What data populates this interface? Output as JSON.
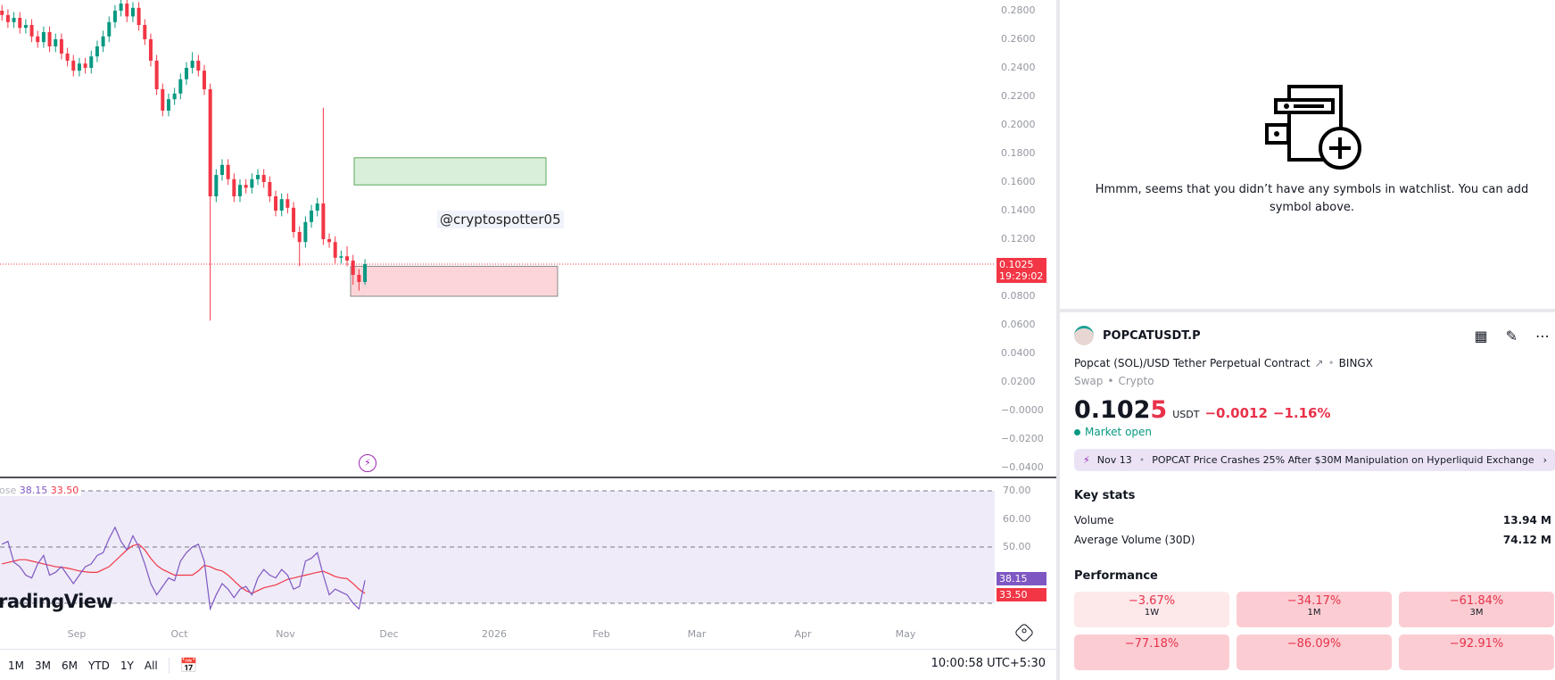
{
  "chart_data": {
    "type": "candlestick",
    "price_axis": {
      "ticks": [
        "0.2800",
        "0.2600",
        "0.2400",
        "0.2200",
        "0.2000",
        "0.1800",
        "0.1600",
        "0.1400",
        "0.1200",
        "0.0800",
        "0.0600",
        "0.0400",
        "0.0200",
        "−0.0000",
        "−0.0200",
        "−0.0400"
      ],
      "range": [
        -0.044,
        0.286
      ]
    },
    "time_axis": [
      "Sep",
      "Oct",
      "Nov",
      "Dec",
      "2026",
      "Feb",
      "Mar",
      "Apr",
      "May"
    ],
    "candles": [
      [
        0.28,
        0.284,
        0.273,
        0.277
      ],
      [
        0.277,
        0.281,
        0.268,
        0.272
      ],
      [
        0.272,
        0.279,
        0.268,
        0.275
      ],
      [
        0.275,
        0.279,
        0.264,
        0.268
      ],
      [
        0.268,
        0.274,
        0.264,
        0.27
      ],
      [
        0.27,
        0.274,
        0.258,
        0.262
      ],
      [
        0.262,
        0.266,
        0.254,
        0.258
      ],
      [
        0.258,
        0.269,
        0.254,
        0.265
      ],
      [
        0.265,
        0.269,
        0.251,
        0.255
      ],
      [
        0.255,
        0.264,
        0.251,
        0.26
      ],
      [
        0.26,
        0.264,
        0.246,
        0.25
      ],
      [
        0.25,
        0.254,
        0.241,
        0.245
      ],
      [
        0.245,
        0.249,
        0.234,
        0.238
      ],
      [
        0.238,
        0.247,
        0.234,
        0.243
      ],
      [
        0.243,
        0.247,
        0.236,
        0.24
      ],
      [
        0.24,
        0.252,
        0.236,
        0.248
      ],
      [
        0.248,
        0.259,
        0.244,
        0.255
      ],
      [
        0.255,
        0.266,
        0.251,
        0.262
      ],
      [
        0.262,
        0.276,
        0.258,
        0.272
      ],
      [
        0.272,
        0.284,
        0.268,
        0.28
      ],
      [
        0.28,
        0.289,
        0.276,
        0.285
      ],
      [
        0.285,
        0.289,
        0.272,
        0.276
      ],
      [
        0.276,
        0.286,
        0.272,
        0.282
      ],
      [
        0.282,
        0.286,
        0.266,
        0.27
      ],
      [
        0.27,
        0.274,
        0.256,
        0.26
      ],
      [
        0.26,
        0.264,
        0.241,
        0.245
      ],
      [
        0.245,
        0.249,
        0.221,
        0.225
      ],
      [
        0.225,
        0.229,
        0.206,
        0.21
      ],
      [
        0.21,
        0.222,
        0.206,
        0.218
      ],
      [
        0.218,
        0.226,
        0.214,
        0.222
      ],
      [
        0.222,
        0.236,
        0.218,
        0.232
      ],
      [
        0.232,
        0.244,
        0.228,
        0.24
      ],
      [
        0.24,
        0.251,
        0.236,
        0.245
      ],
      [
        0.245,
        0.249,
        0.234,
        0.238
      ],
      [
        0.238,
        0.242,
        0.221,
        0.225
      ],
      [
        0.225,
        0.229,
        0.063,
        0.15
      ],
      [
        0.15,
        0.169,
        0.146,
        0.165
      ],
      [
        0.165,
        0.176,
        0.161,
        0.172
      ],
      [
        0.172,
        0.176,
        0.158,
        0.162
      ],
      [
        0.162,
        0.166,
        0.146,
        0.15
      ],
      [
        0.15,
        0.162,
        0.146,
        0.158
      ],
      [
        0.158,
        0.162,
        0.152,
        0.156
      ],
      [
        0.156,
        0.166,
        0.152,
        0.162
      ],
      [
        0.162,
        0.169,
        0.158,
        0.165
      ],
      [
        0.165,
        0.169,
        0.156,
        0.16
      ],
      [
        0.16,
        0.164,
        0.146,
        0.15
      ],
      [
        0.15,
        0.154,
        0.136,
        0.14
      ],
      [
        0.14,
        0.152,
        0.136,
        0.148
      ],
      [
        0.148,
        0.152,
        0.138,
        0.142
      ],
      [
        0.142,
        0.146,
        0.121,
        0.125
      ],
      [
        0.125,
        0.129,
        0.101,
        0.118
      ],
      [
        0.118,
        0.136,
        0.114,
        0.132
      ],
      [
        0.132,
        0.144,
        0.128,
        0.14
      ],
      [
        0.14,
        0.149,
        0.136,
        0.145
      ],
      [
        0.145,
        0.212,
        0.116,
        0.12
      ],
      [
        0.12,
        0.124,
        0.114,
        0.118
      ],
      [
        0.118,
        0.122,
        0.103,
        0.107
      ],
      [
        0.107,
        0.112,
        0.103,
        0.108
      ],
      [
        0.108,
        0.115,
        0.101,
        0.105
      ],
      [
        0.105,
        0.109,
        0.088,
        0.095
      ],
      [
        0.095,
        0.099,
        0.084,
        0.09
      ],
      [
        0.09,
        0.106,
        0.088,
        0.1025
      ]
    ],
    "current_price": "0.1025",
    "countdown": "19:29:02",
    "zones": [
      {
        "type": "supply",
        "top": 0.177,
        "bottom": 0.158,
        "color": "#d9efd9"
      },
      {
        "type": "demand",
        "top": 0.101,
        "bottom": 0.08,
        "color": "#fbd5d8"
      }
    ],
    "watermark": "@cryptospotter05",
    "logo": "radingView",
    "rsi": {
      "legend_prefix": "ose",
      "value": "38.15",
      "ma_value": "33.50",
      "ticks": [
        "70.00",
        "60.00",
        "50.00"
      ],
      "range": [
        30,
        70
      ],
      "values": [
        51,
        52,
        44.6,
        43,
        40,
        39,
        44,
        47,
        40,
        41,
        43,
        40,
        37,
        40,
        43,
        44,
        47,
        48,
        53,
        57,
        52,
        49,
        54,
        50,
        44,
        37,
        33,
        36,
        39,
        38,
        45,
        48,
        50,
        51,
        45,
        28,
        33,
        37,
        35,
        32,
        35,
        36,
        33,
        39,
        42,
        40,
        39,
        42,
        40,
        35,
        36,
        45,
        46,
        48,
        40,
        33,
        35,
        34,
        33,
        30,
        28,
        38.15
      ],
      "ma": [
        44,
        44.5,
        45,
        45.5,
        45.5,
        45,
        44.5,
        44,
        43.5,
        43,
        42.8,
        42.5,
        42,
        41.5,
        41.2,
        41,
        41,
        42,
        43,
        45,
        47,
        49,
        50.5,
        51,
        49,
        46,
        43.5,
        42,
        41,
        40,
        40,
        40,
        40,
        41.5,
        43.5,
        43,
        42,
        41.5,
        40,
        38,
        36,
        34.5,
        33.5,
        34.5,
        35.5,
        36,
        36.5,
        37.5,
        38.5,
        39,
        39.5,
        40,
        40.5,
        41,
        41.4,
        40.5,
        39.5,
        39,
        38.8,
        37,
        35,
        33.5
      ],
      "line_color": "#7e57c2",
      "ma_color": "#f23645",
      "band_color": "#efebf8"
    },
    "colors": {
      "up": "#089981",
      "down": "#f23645"
    }
  },
  "toolbar": {
    "ranges": [
      "1M",
      "3M",
      "6M",
      "YTD",
      "1Y",
      "All"
    ],
    "clock": "10:00:58 UTC+5:30"
  },
  "watchlist": {
    "empty_message": "Hmmm, seems that you didn’t have any symbols in watchlist. You can add symbol above."
  },
  "symbol": {
    "ticker": "POPCATUSDT.P",
    "description": "Popcat (SOL)/USD Tether Perpetual Contract",
    "exchange": "BINGX",
    "type": "Swap",
    "category": "Crypto",
    "price_main": "0.102",
    "price_last_digit": "5",
    "currency": "USDT",
    "change": "−0.0012",
    "change_pct": "−1.16%",
    "market_status": "Market open",
    "news": {
      "date": "Nov 13",
      "headline": "POPCAT Price Crashes 25% After $30M Manipulation on Hyperliquid Exchange"
    }
  },
  "key_stats": {
    "title": "Key stats",
    "items": [
      {
        "label": "Volume",
        "value": "13.94 M"
      },
      {
        "label": "Average Volume (30D)",
        "value": "74.12 M"
      }
    ]
  },
  "performance": {
    "title": "Performance",
    "items": [
      {
        "value": "−3.67%",
        "period": "1W"
      },
      {
        "value": "−34.17%",
        "period": "1M"
      },
      {
        "value": "−61.84%",
        "period": "3M"
      },
      {
        "value": "−77.18%",
        "period": ""
      },
      {
        "value": "−86.09%",
        "period": ""
      },
      {
        "value": "−92.91%",
        "period": ""
      }
    ]
  }
}
